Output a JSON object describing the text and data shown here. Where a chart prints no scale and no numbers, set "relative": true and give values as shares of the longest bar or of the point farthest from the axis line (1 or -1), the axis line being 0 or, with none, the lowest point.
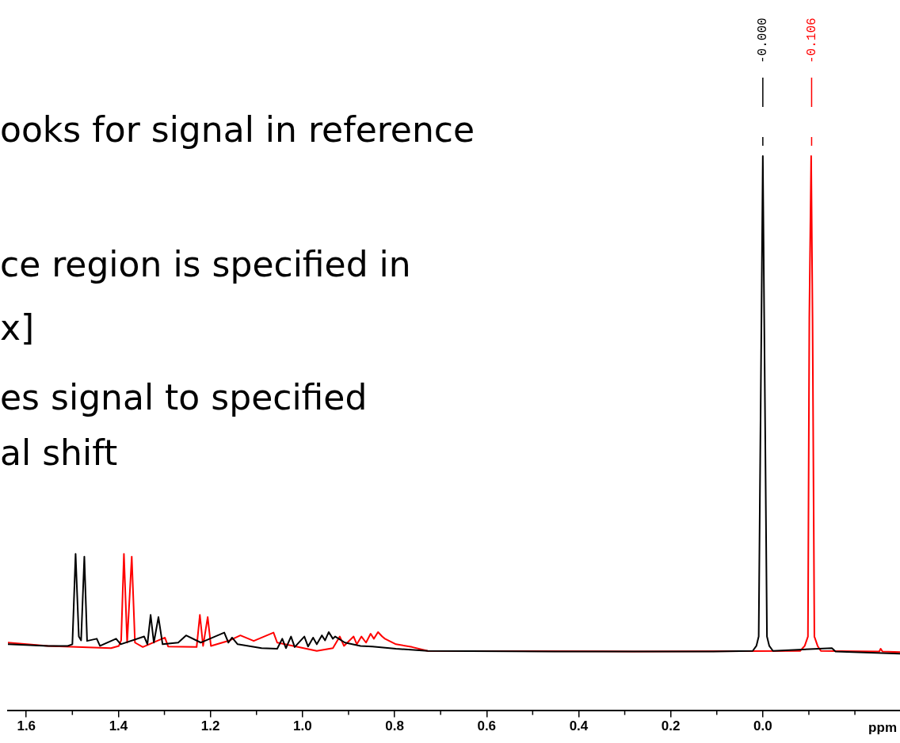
{
  "chart_data": {
    "type": "line",
    "relative": true,
    "xlabel": "ppm",
    "xlim": [
      1.64,
      -0.298
    ],
    "xticks": [
      1.6,
      {
        "value": 1.5,
        "label": null
      },
      1.4,
      {
        "value": 1.3,
        "label": null
      },
      1.2,
      {
        "value": 1.1,
        "label": null
      },
      {
        "value": 1.0,
        "label": "1.0"
      },
      {
        "value": 0.9,
        "label": null
      },
      0.8,
      {
        "value": 0.7,
        "label": null
      },
      0.6,
      {
        "value": 0.5,
        "label": null
      },
      0.4,
      {
        "value": 0.3,
        "label": null
      },
      0.2,
      {
        "value": 0.1,
        "label": null
      },
      {
        "value": 0.0,
        "label": "0.0"
      },
      {
        "value": -0.1,
        "label": null
      },
      {
        "value": -0.2,
        "label": null
      }
    ],
    "grid": false,
    "legend": false,
    "marker": "none",
    "line_style": "solid",
    "series": [
      {
        "color": "#000000",
        "x": [
          1.64,
          1.553,
          1.51,
          1.5,
          1.493,
          1.486,
          1.481,
          1.474,
          1.468,
          1.447,
          1.44,
          1.405,
          1.395,
          1.344,
          1.337,
          1.33,
          1.323,
          1.313,
          1.304,
          1.27,
          1.253,
          1.221,
          1.17,
          1.161,
          1.153,
          1.141,
          1.089,
          1.055,
          1.044,
          1.036,
          1.025,
          1.017,
          0.996,
          0.988,
          0.977,
          0.969,
          0.958,
          0.951,
          0.943,
          0.934,
          0.929,
          0.908,
          0.874,
          0.848,
          0.797,
          0.728,
          0.452,
          0.108,
          0.022,
          0.014,
          0.009,
          0.003,
          0.0,
          -0.003,
          -0.009,
          -0.014,
          -0.022,
          -0.15,
          -0.158,
          -0.298
        ],
        "values": [
          0.119,
          0.116,
          0.116,
          0.119,
          0.282,
          0.133,
          0.126,
          0.277,
          0.125,
          0.129,
          0.116,
          0.129,
          0.119,
          0.133,
          0.119,
          0.172,
          0.122,
          0.168,
          0.119,
          0.122,
          0.135,
          0.122,
          0.14,
          0.122,
          0.131,
          0.119,
          0.112,
          0.111,
          0.129,
          0.112,
          0.133,
          0.114,
          0.133,
          0.115,
          0.131,
          0.119,
          0.135,
          0.126,
          0.141,
          0.129,
          0.133,
          0.122,
          0.116,
          0.115,
          0.111,
          0.107,
          0.106,
          0.106,
          0.107,
          0.116,
          0.133,
          0.708,
          1.0,
          0.708,
          0.133,
          0.116,
          0.107,
          0.112,
          0.106,
          0.102
        ]
      },
      {
        "color": "#ff0000",
        "x": [
          1.64,
          1.553,
          1.416,
          1.399,
          1.394,
          1.388,
          1.381,
          1.371,
          1.364,
          1.347,
          1.299,
          1.292,
          1.23,
          1.223,
          1.216,
          1.206,
          1.199,
          1.158,
          1.135,
          1.106,
          1.063,
          1.055,
          1.02,
          0.969,
          0.934,
          0.919,
          0.91,
          0.889,
          0.882,
          0.872,
          0.862,
          0.852,
          0.845,
          0.836,
          0.827,
          0.821,
          0.797,
          0.762,
          0.728,
          0.28,
          -0.081,
          -0.091,
          -0.098,
          -0.101,
          -0.105,
          -0.108,
          -0.112,
          -0.119,
          -0.126,
          -0.253,
          -0.256,
          -0.26,
          -0.298
        ],
        "values": [
          0.122,
          0.116,
          0.112,
          0.116,
          0.126,
          0.282,
          0.122,
          0.277,
          0.122,
          0.114,
          0.131,
          0.115,
          0.114,
          0.172,
          0.116,
          0.168,
          0.116,
          0.126,
          0.135,
          0.125,
          0.14,
          0.122,
          0.116,
          0.107,
          0.112,
          0.133,
          0.116,
          0.133,
          0.119,
          0.133,
          0.122,
          0.138,
          0.129,
          0.141,
          0.133,
          0.129,
          0.119,
          0.114,
          0.107,
          0.106,
          0.107,
          0.116,
          0.133,
          0.708,
          1.0,
          0.708,
          0.133,
          0.116,
          0.107,
          0.106,
          0.111,
          0.106,
          0.105
        ]
      }
    ],
    "annotations": [
      "ooks for signal in reference",
      "ce region is specified in",
      "x]",
      "es signal to specified",
      "al shift",
      {
        "text": "-0.000",
        "x": 0.0
      },
      {
        "text": "-0.106",
        "x": -0.106
      }
    ]
  }
}
